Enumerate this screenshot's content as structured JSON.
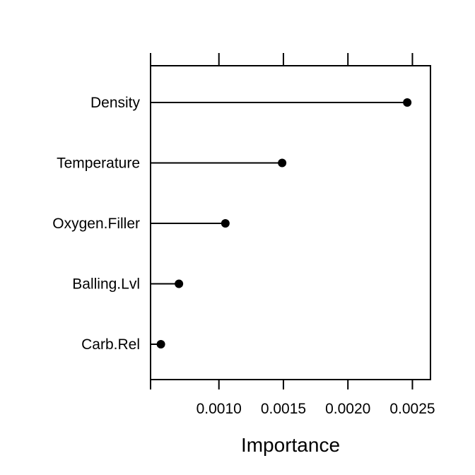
{
  "chart_data": {
    "type": "dot",
    "xlabel": "Importance",
    "categories": [
      "Density",
      "Temperature",
      "Oxygen.Filler",
      "Balling.Lvl",
      "Carb.Rel"
    ],
    "values": [
      0.00246,
      0.00149,
      0.00105,
      0.00069,
      0.00055
    ],
    "xlim": [
      0.00047,
      0.00264
    ],
    "x_ticks": [
      0.001,
      0.0015,
      0.002,
      0.0025
    ],
    "x_tick_labels": [
      "0.0010",
      "0.0015",
      "0.0020",
      "0.0025"
    ],
    "baseline": 0.00047,
    "grid": false
  }
}
